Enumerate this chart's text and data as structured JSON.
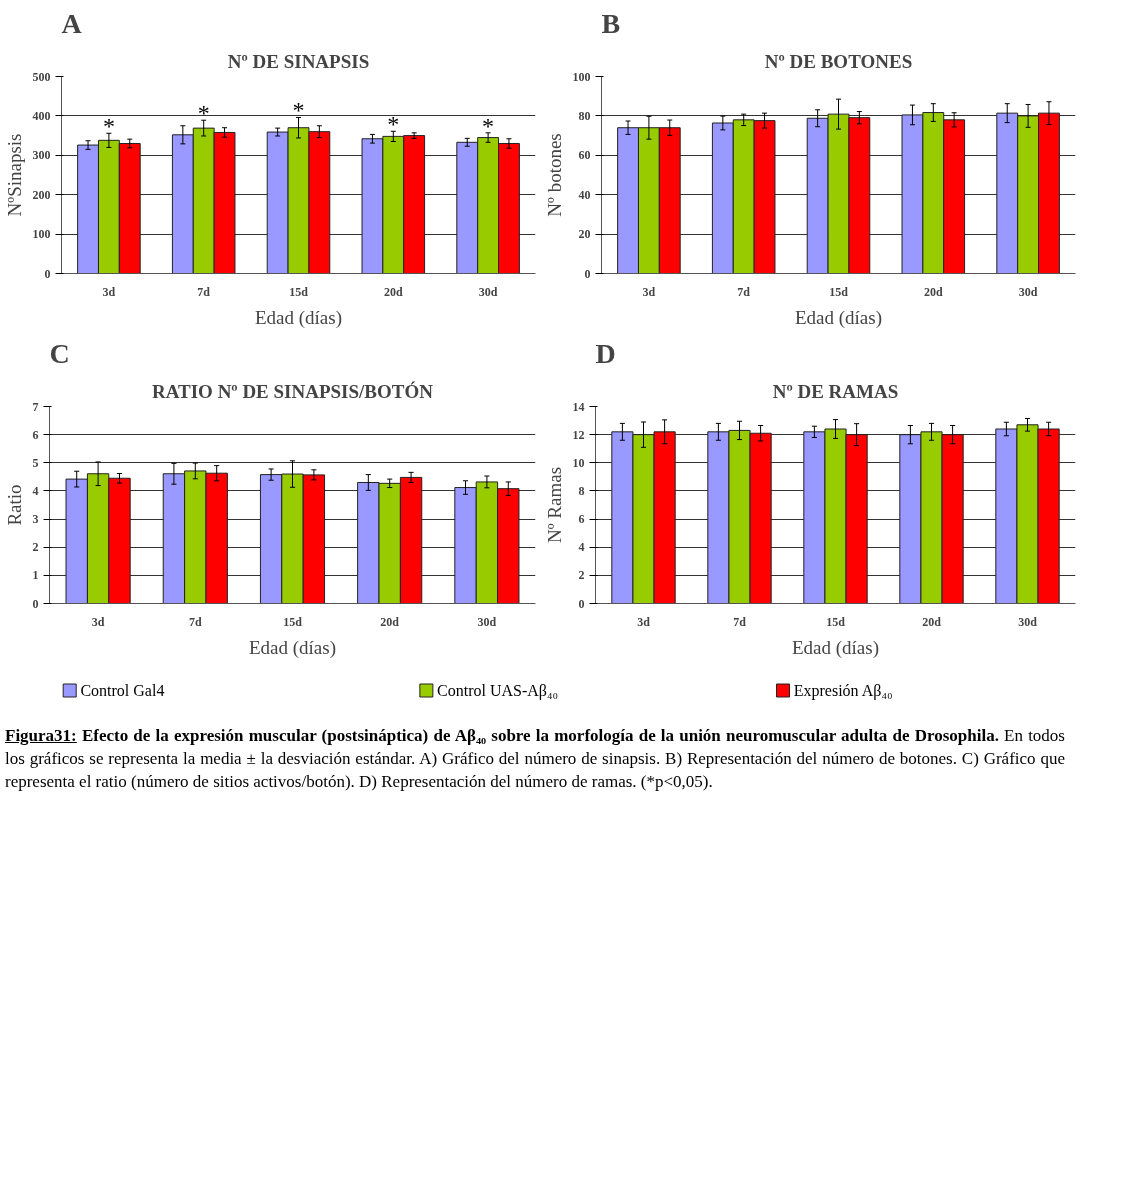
{
  "chart_data": [
    {
      "type": "bar",
      "title": "Nº DE SINAPSIS",
      "xlabel": "Edad (días)",
      "ylabel": "NºSinapsis",
      "annotations": [
        "A",
        "*",
        "*",
        "*",
        "*",
        "*"
      ],
      "categories": [
        "3d",
        "7d",
        "15d",
        "20d",
        "30d"
      ],
      "ylim": [
        0,
        500
      ],
      "yticks": [
        0,
        100,
        200,
        300,
        400,
        500
      ],
      "grid": "y",
      "legend": "bottom",
      "series": [
        {
          "name": "Control Gal4",
          "color": "#9999ff",
          "values": [
            326,
            352,
            359,
            342,
            333
          ],
          "errors": [
            11,
            23,
            10,
            11,
            10
          ]
        },
        {
          "name": "Control UAS-Aβ₄₀",
          "color": "#99cc00",
          "values": [
            338,
            369,
            370,
            348,
            345
          ],
          "errors": [
            18,
            20,
            26,
            13,
            12
          ]
        },
        {
          "name": "Expresión Aβ₄₀",
          "color": "#ff0000",
          "values": [
            330,
            358,
            360,
            350,
            330
          ],
          "errors": [
            11,
            12,
            15,
            7,
            12
          ]
        }
      ]
    },
    {
      "type": "bar",
      "title": "Nº DE BOTONES",
      "xlabel": "Edad (días)",
      "ylabel": "Nº botones",
      "annotations": [
        "B"
      ],
      "categories": [
        "3d",
        "7d",
        "15d",
        "20d",
        "30d"
      ],
      "ylim": [
        0,
        100
      ],
      "yticks": [
        0,
        20,
        40,
        60,
        80,
        100
      ],
      "grid": "y",
      "series": [
        {
          "color": "#9999ff",
          "values": [
            74,
            76.4,
            78.8,
            80.5,
            81.4
          ],
          "errors": [
            3.4,
            3.5,
            4.3,
            5,
            4.8
          ]
        },
        {
          "color": "#99cc00",
          "values": [
            74,
            78,
            80.9,
            81.7,
            80
          ],
          "errors": [
            5.8,
            2.9,
            7.6,
            4.5,
            5.8
          ]
        },
        {
          "color": "#ff0000",
          "values": [
            74,
            77.6,
            79.1,
            78,
            81.4
          ],
          "errors": [
            3.9,
            3.8,
            3.1,
            3.6,
            5.8
          ]
        }
      ]
    },
    {
      "type": "bar",
      "title": "RATIO Nº DE SINAPSIS/BOTÓN",
      "xlabel": "Edad (días)",
      "ylabel": "Ratio",
      "annotations": [
        "C"
      ],
      "categories": [
        "3d",
        "7d",
        "15d",
        "20d",
        "30d"
      ],
      "ylim": [
        0,
        7
      ],
      "yticks": [
        0,
        1,
        2,
        3,
        4,
        5,
        6,
        7
      ],
      "grid": "y",
      "series": [
        {
          "color": "#9999ff",
          "values": [
            4.42,
            4.61,
            4.58,
            4.3,
            4.12
          ],
          "errors": [
            0.28,
            0.37,
            0.2,
            0.28,
            0.24
          ]
        },
        {
          "color": "#99cc00",
          "values": [
            4.61,
            4.71,
            4.6,
            4.27,
            4.32
          ],
          "errors": [
            0.42,
            0.28,
            0.47,
            0.15,
            0.21
          ]
        },
        {
          "color": "#ff0000",
          "values": [
            4.45,
            4.63,
            4.57,
            4.48,
            4.08
          ],
          "errors": [
            0.17,
            0.27,
            0.18,
            0.18,
            0.24
          ]
        }
      ]
    },
    {
      "type": "bar",
      "title": "Nº DE RAMAS",
      "xlabel": "Edad (días)",
      "ylabel": "Nº Ramas",
      "annotations": [
        "D",
        "Figura31:",
        "Efecto de la expresión muscular (postsináptica) de Aβ₄₀ sobre la morfología de la unión neuromuscular adulta de Drosophila.",
        "En todos los gráficos se representa la media ± la desviación estándar. A) Gráfico del número de sinapsis. B)  Representación del número de botones. C) Gráfico que representa el ratio (número de sitios activos/botón). D) Representación del número de ramas. (*p<0,05)."
      ],
      "categories": [
        "3d",
        "7d",
        "15d",
        "20d",
        "30d"
      ],
      "ylim": [
        0,
        14
      ],
      "yticks": [
        0,
        2,
        4,
        6,
        8,
        10,
        12,
        14
      ],
      "grid": "y",
      "series": [
        {
          "color": "#9999ff",
          "values": [
            12.2,
            12.2,
            12.2,
            12.0,
            12.4
          ],
          "errors": [
            0.6,
            0.6,
            0.4,
            0.65,
            0.48
          ]
        },
        {
          "color": "#99cc00",
          "values": [
            12.0,
            12.3,
            12.4,
            12.2,
            12.7
          ],
          "errors": [
            0.9,
            0.65,
            0.67,
            0.6,
            0.45
          ]
        },
        {
          "color": "#ff0000",
          "values": [
            12.2,
            12.1,
            12.0,
            12.0,
            12.4
          ],
          "errors": [
            0.85,
            0.55,
            0.78,
            0.65,
            0.48
          ]
        }
      ]
    }
  ]
}
